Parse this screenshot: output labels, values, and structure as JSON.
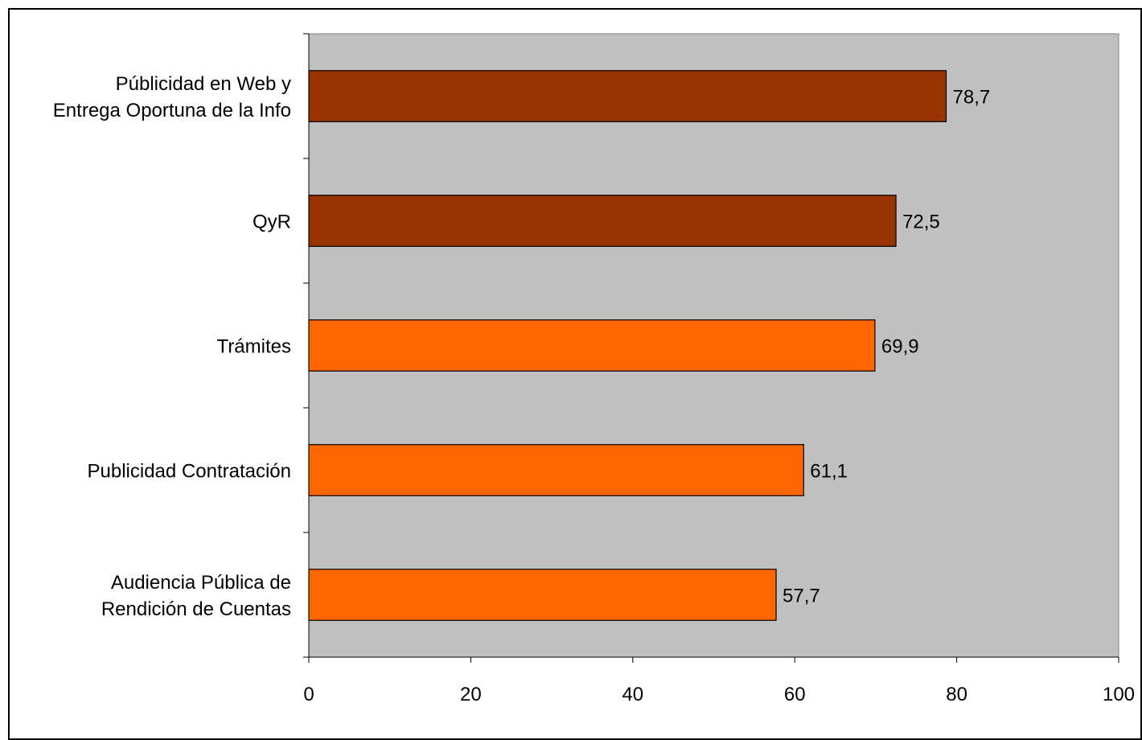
{
  "chart_data": {
    "type": "bar",
    "orientation": "horizontal",
    "categories": [
      [
        "Públicidad en Web y",
        "Entrega Oportuna de la Info"
      ],
      [
        "QyR"
      ],
      [
        "Trámites"
      ],
      [
        "Publicidad Contratación"
      ],
      [
        "Audiencia Pública de",
        "Rendición de Cuentas"
      ]
    ],
    "values": [
      78.7,
      72.5,
      69.9,
      61.1,
      57.7
    ],
    "value_labels": [
      "78,7",
      "72,5",
      "69,9",
      "61,1",
      "57,7"
    ],
    "bar_colors": [
      "#993300",
      "#993300",
      "#FF6600",
      "#FF6600",
      "#FF6600"
    ],
    "xlim": [
      0,
      100
    ],
    "x_ticks": [
      0,
      20,
      40,
      60,
      80,
      100
    ],
    "x_tick_labels": [
      "0",
      "20",
      "40",
      "60",
      "80",
      "100"
    ],
    "plot_background": "#C0C0C0",
    "grid": false,
    "title": "",
    "xlabel": "",
    "ylabel": ""
  }
}
